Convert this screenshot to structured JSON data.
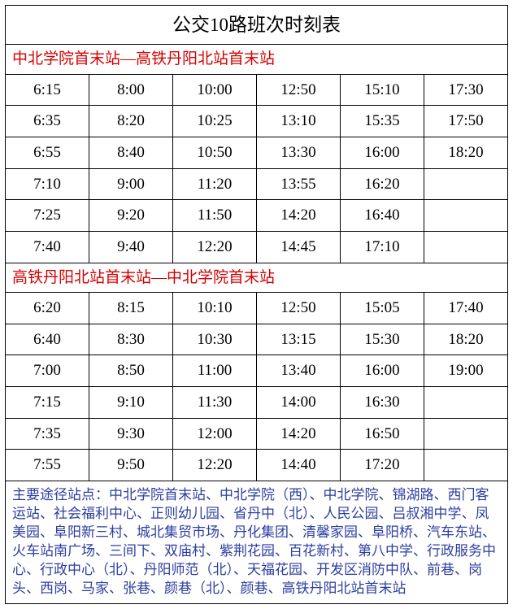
{
  "colors": {
    "title": "#000000",
    "route": "#d40000",
    "time": "#000000",
    "notes": "#2d3ea0",
    "border": "#000000",
    "background": "#ffffff"
  },
  "fontsize": {
    "title": 23,
    "route": 19,
    "time": 19,
    "notes": 17
  },
  "columns": 6,
  "title": "公交10路班次时刻表",
  "route1": {
    "label": "中北学院首末站—高铁丹阳北站首末站",
    "rows": [
      [
        "6:15",
        "8:00",
        "10:00",
        "12:50",
        "15:10",
        "17:30"
      ],
      [
        "6:35",
        "8:20",
        "10:25",
        "13:10",
        "15:35",
        "17:50"
      ],
      [
        "6:55",
        "8:40",
        "10:50",
        "13:30",
        "16:00",
        "18:20"
      ],
      [
        "7:10",
        "9:00",
        "11:20",
        "13:55",
        "16:20",
        ""
      ],
      [
        "7:25",
        "9:20",
        "11:50",
        "14:20",
        "16:40",
        ""
      ],
      [
        "7:40",
        "9:40",
        "12:20",
        "14:45",
        "17:10",
        ""
      ]
    ]
  },
  "route2": {
    "label": "高铁丹阳北站首末站—中北学院首末站",
    "rows": [
      [
        "6:20",
        "8:15",
        "10:10",
        "12:50",
        "15:05",
        "17:40"
      ],
      [
        "6:40",
        "8:30",
        "10:30",
        "13:15",
        "15:30",
        "18:20"
      ],
      [
        "7:00",
        "8:50",
        "11:00",
        "13:40",
        "16:00",
        "19:00"
      ],
      [
        "7:15",
        "9:10",
        "11:30",
        "14:00",
        "16:30",
        ""
      ],
      [
        "7:35",
        "9:30",
        "12:00",
        "14:20",
        "16:50",
        ""
      ],
      [
        "7:55",
        "9:50",
        "12:20",
        "14:40",
        "17:20",
        ""
      ]
    ]
  },
  "notes": "主要途径站点：中北学院首末站、中北学院（西）、中北学院、锦湖路、西门客运站、社会福利中心、正则幼儿园、省丹中（北）、人民公园、吕叔湘中学、凤美园、阜阳新三村、城北集贸市场、丹化集团、清馨家园、阜阳桥、汽车东站、火车站南广场、三间下、双庙村、紫荆花园、百花新村、第八中学、行政服务中心、行政中心（北）、丹阳师范（北）、天福花园、开发区消防中队、前巷、岗头、西岗、马家、张巷、颜巷（北）、颜巷、高铁丹阳北站首末站"
}
